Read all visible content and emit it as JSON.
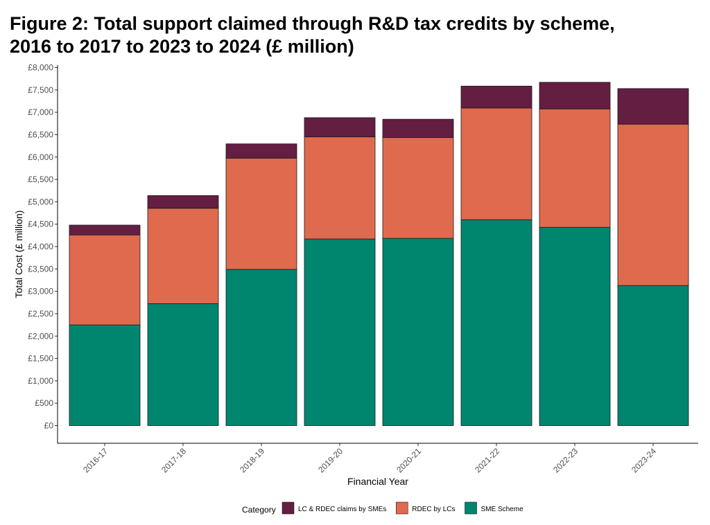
{
  "chart_data": {
    "type": "bar",
    "stacked": true,
    "title": "Figure 2: Total support claimed through R&D tax credits by scheme, 2016 to 2017 to 2023 to 2024 (£ million)",
    "title_lines": [
      "Figure 2: Total support claimed through R&D tax credits by scheme,",
      "2016 to 2017 to 2023 to 2024 (£ million)"
    ],
    "xlabel": "Financial Year",
    "ylabel": "Total Cost (£ million)",
    "ylim": [
      0,
      8000
    ],
    "y_ticks": [
      0,
      500,
      1000,
      1500,
      2000,
      2500,
      3000,
      3500,
      4000,
      4500,
      5000,
      5500,
      6000,
      6500,
      7000,
      7500,
      8000
    ],
    "y_tick_labels": [
      "£0",
      "£500",
      "£1,000",
      "£1,500",
      "£2,000",
      "£2,500",
      "£3,000",
      "£3,500",
      "£4,000",
      "£4,500",
      "£5,000",
      "£5,500",
      "£6,000",
      "£6,500",
      "£7,000",
      "£7,500",
      "£8,000"
    ],
    "categories": [
      "2016-17",
      "2017-18",
      "2018-19",
      "2019-20",
      "2020-21",
      "2021-22",
      "2022-23",
      "2023-24"
    ],
    "grid": false,
    "legend_position": "bottom",
    "legend_title": "Category",
    "series": [
      {
        "name": "SME Scheme",
        "color": "#00856F",
        "values": [
          2250,
          2725,
          3490,
          4170,
          4185,
          4600,
          4430,
          3130
        ]
      },
      {
        "name": "RDEC by LCs",
        "color": "#E06A4E",
        "values": [
          2010,
          2130,
          2485,
          2280,
          2250,
          2495,
          2645,
          3605
        ]
      },
      {
        "name": "LC & RDEC claims by SMEs",
        "color": "#641E42",
        "values": [
          220,
          285,
          320,
          430,
          410,
          490,
          595,
          795
        ]
      }
    ],
    "legend_order": [
      2,
      1,
      0
    ]
  }
}
